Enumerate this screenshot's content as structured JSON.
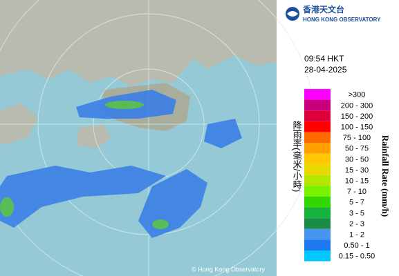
{
  "header": {
    "title_zh": "香港天文台",
    "title_en": "HONG KONG OBSERVATORY"
  },
  "timestamp": {
    "time": "09:54 HKT",
    "date": "28-04-2025"
  },
  "legend": {
    "title_zh": "降雨率(毫米/小時)",
    "title_en": "Rainfall Rate (mm/h)",
    "items": [
      {
        "label": ">300",
        "color": "#ff00ff"
      },
      {
        "label": "200 - 300",
        "color": "#c8007d"
      },
      {
        "label": "150 - 200",
        "color": "#e0003c"
      },
      {
        "label": "100 - 150",
        "color": "#ff0000"
      },
      {
        "label": "75 - 100",
        "color": "#ff6a00"
      },
      {
        "label": "50 - 75",
        "color": "#ff9f00"
      },
      {
        "label": "30 - 50",
        "color": "#ffc800"
      },
      {
        "label": "15 - 30",
        "color": "#e8d800"
      },
      {
        "label": "10 - 15",
        "color": "#b4e600"
      },
      {
        "label": "7 - 10",
        "color": "#78f000"
      },
      {
        "label": "5 - 7",
        "color": "#32d700"
      },
      {
        "label": "3 - 5",
        "color": "#14b43c"
      },
      {
        "label": "2 - 3",
        "color": "#1a8c46"
      },
      {
        "label": "1 - 2",
        "color": "#4696f0"
      },
      {
        "label": "0.50 - 1",
        "color": "#1e78f0"
      },
      {
        "label": "0.15 - 0.50",
        "color": "#00c8ff"
      }
    ]
  },
  "copyright": "© Hong Kong Observatory"
}
